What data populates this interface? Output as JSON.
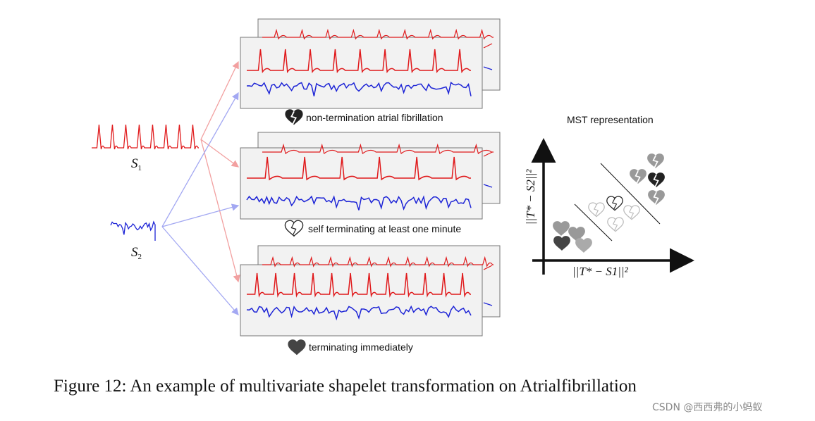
{
  "shapelets": [
    {
      "symbol": "S",
      "index": "1",
      "color": "#e0191b"
    },
    {
      "symbol": "S",
      "index": "2",
      "color": "#1d24d6"
    }
  ],
  "panels": [
    {
      "label": "non-termination atrial fibrillation",
      "icon": "broken-heart-filled-icon"
    },
    {
      "label": "self terminating at least one minute",
      "icon": "broken-heart-outline-icon"
    },
    {
      "label": "terminating immediately",
      "icon": "heart-filled-icon"
    }
  ],
  "mst": {
    "title": "MST representation",
    "y_axis_label": "||T* − S2||²",
    "x_axis_label": "||T* − S1||²"
  },
  "colors": {
    "red_series": "#e0191b",
    "blue_series": "#1d24d6",
    "arrow_red": "#f2a0a0",
    "arrow_blue": "#a3a8f2",
    "panel_fill": "#f2f2f2"
  },
  "caption": "Figure 12: An example of multivariate shapelet transformation on Atrialfibrillation",
  "watermark": "CSDN @西西弗的小蚂蚁"
}
